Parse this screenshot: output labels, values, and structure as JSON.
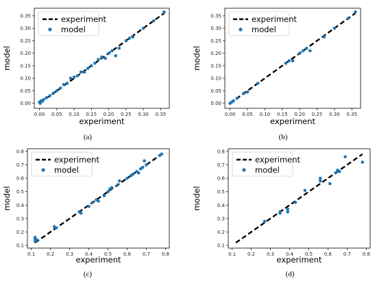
{
  "chart_data": [
    {
      "type": "scatter",
      "panel": "(a)",
      "caption": "(a)",
      "xlabel": "experiment",
      "ylabel": "model",
      "xlim": [
        -0.015,
        0.375
      ],
      "ylim": [
        -0.02,
        0.38
      ],
      "xticks": [
        0.0,
        0.05,
        0.1,
        0.15,
        0.2,
        0.25,
        0.3,
        0.35
      ],
      "yticks": [
        0.0,
        0.05,
        0.1,
        0.15,
        0.2,
        0.25,
        0.3,
        0.35
      ],
      "tick_labels_x": [
        "0.00",
        "0.05",
        "0.10",
        "0.15",
        "0.20",
        "0.25",
        "0.30",
        "0.35"
      ],
      "tick_labels_y": [
        "0.00",
        "0.05",
        "0.10",
        "0.15",
        "0.20",
        "0.25",
        "0.30",
        "0.35"
      ],
      "legend": {
        "position": "top-left",
        "entries": [
          "experiment",
          "model"
        ]
      },
      "series": [
        {
          "name": "experiment",
          "kind": "line",
          "style": "dashed",
          "color": "#000000",
          "x": [
            0.0,
            0.36
          ],
          "y": [
            0.0,
            0.36
          ]
        },
        {
          "name": "model",
          "kind": "scatter",
          "color": "#1f77b4",
          "x": [
            0.0,
            0.002,
            0.005,
            0.008,
            0.012,
            0.02,
            0.03,
            0.04,
            0.05,
            0.06,
            0.07,
            0.08,
            0.09,
            0.1,
            0.11,
            0.12,
            0.13,
            0.14,
            0.15,
            0.16,
            0.17,
            0.18,
            0.19,
            0.2,
            0.21,
            0.22,
            0.23,
            0.25,
            0.26,
            0.27,
            0.3,
            0.33,
            0.36
          ],
          "y": [
            0.005,
            0.0,
            0.01,
            0.008,
            0.015,
            0.022,
            0.03,
            0.04,
            0.05,
            0.06,
            0.075,
            0.08,
            0.1,
            0.105,
            0.11,
            0.125,
            0.125,
            0.14,
            0.15,
            0.16,
            0.175,
            0.185,
            0.18,
            0.2,
            0.21,
            0.19,
            0.22,
            0.25,
            0.26,
            0.265,
            0.3,
            0.33,
            0.365
          ]
        }
      ]
    },
    {
      "type": "scatter",
      "panel": "(b)",
      "caption": "(b)",
      "xlabel": "experiment",
      "ylabel": "model",
      "xlim": [
        -0.015,
        0.375
      ],
      "ylim": [
        -0.02,
        0.38
      ],
      "xticks": [
        0.0,
        0.05,
        0.1,
        0.15,
        0.2,
        0.25,
        0.3,
        0.35
      ],
      "yticks": [
        0.0,
        0.05,
        0.1,
        0.15,
        0.2,
        0.25,
        0.3,
        0.35
      ],
      "tick_labels_x": [
        "0.00",
        "0.05",
        "0.10",
        "0.15",
        "0.20",
        "0.25",
        "0.30",
        "0.35"
      ],
      "tick_labels_y": [
        "0.00",
        "0.05",
        "0.10",
        "0.15",
        "0.20",
        "0.25",
        "0.30",
        "0.35"
      ],
      "legend": {
        "position": "top-left",
        "entries": [
          "experiment",
          "model"
        ]
      },
      "series": [
        {
          "name": "experiment",
          "kind": "line",
          "style": "dashed",
          "color": "#000000",
          "x": [
            0.0,
            0.36
          ],
          "y": [
            0.0,
            0.36
          ]
        },
        {
          "name": "model",
          "kind": "scatter",
          "color": "#1f77b4",
          "x": [
            0.0,
            0.005,
            0.01,
            0.02,
            0.04,
            0.05,
            0.08,
            0.16,
            0.17,
            0.18,
            0.2,
            0.21,
            0.22,
            0.23,
            0.27,
            0.3,
            0.34,
            0.36
          ],
          "y": [
            0.0,
            0.005,
            0.01,
            0.02,
            0.04,
            0.045,
            0.08,
            0.16,
            0.17,
            0.17,
            0.2,
            0.21,
            0.22,
            0.21,
            0.265,
            0.3,
            0.34,
            0.365
          ]
        }
      ]
    },
    {
      "type": "scatter",
      "panel": "(c)",
      "caption": "(c)",
      "xlabel": "experiment",
      "ylabel": "model",
      "xlim": [
        0.08,
        0.82
      ],
      "ylim": [
        0.08,
        0.82
      ],
      "xticks": [
        0.1,
        0.2,
        0.3,
        0.4,
        0.5,
        0.6,
        0.7,
        0.8
      ],
      "yticks": [
        0.1,
        0.2,
        0.3,
        0.4,
        0.5,
        0.6,
        0.7,
        0.8
      ],
      "tick_labels_x": [
        "0.1",
        "0.2",
        "0.3",
        "0.4",
        "0.5",
        "0.6",
        "0.7",
        "0.8"
      ],
      "tick_labels_y": [
        "0.1",
        "0.2",
        "0.3",
        "0.4",
        "0.5",
        "0.6",
        "0.7",
        "0.8"
      ],
      "legend": {
        "position": "top-left",
        "entries": [
          "experiment",
          "model"
        ]
      },
      "series": [
        {
          "name": "experiment",
          "kind": "line",
          "style": "dashed",
          "color": "#000000",
          "x": [
            0.12,
            0.78
          ],
          "y": [
            0.12,
            0.78
          ]
        },
        {
          "name": "model",
          "kind": "scatter",
          "color": "#1f77b4",
          "x": [
            0.12,
            0.12,
            0.12,
            0.13,
            0.22,
            0.23,
            0.35,
            0.36,
            0.4,
            0.42,
            0.44,
            0.45,
            0.48,
            0.5,
            0.51,
            0.52,
            0.55,
            0.56,
            0.6,
            0.62,
            0.63,
            0.65,
            0.66,
            0.67,
            0.68,
            0.69,
            0.7,
            0.77,
            0.78
          ],
          "y": [
            0.13,
            0.15,
            0.16,
            0.14,
            0.24,
            0.23,
            0.35,
            0.34,
            0.39,
            0.42,
            0.44,
            0.43,
            0.47,
            0.5,
            0.52,
            0.53,
            0.55,
            0.58,
            0.6,
            0.62,
            0.63,
            0.65,
            0.64,
            0.67,
            0.68,
            0.73,
            0.7,
            0.77,
            0.78
          ]
        }
      ]
    },
    {
      "type": "scatter",
      "panel": "(d)",
      "caption": "(d)",
      "xlabel": "experiment",
      "ylabel": "model",
      "xlim": [
        0.08,
        0.82
      ],
      "ylim": [
        0.08,
        0.82
      ],
      "xticks": [
        0.1,
        0.2,
        0.3,
        0.4,
        0.5,
        0.6,
        0.7,
        0.8
      ],
      "yticks": [
        0.1,
        0.2,
        0.3,
        0.4,
        0.5,
        0.6,
        0.7,
        0.8
      ],
      "tick_labels_x": [
        "0.1",
        "0.2",
        "0.3",
        "0.4",
        "0.5",
        "0.6",
        "0.7",
        "0.8"
      ],
      "tick_labels_y": [
        "0.1",
        "0.2",
        "0.3",
        "0.4",
        "0.5",
        "0.6",
        "0.7",
        "0.8"
      ],
      "legend": {
        "position": "top-left",
        "entries": [
          "experiment",
          "model"
        ]
      },
      "series": [
        {
          "name": "experiment",
          "kind": "line",
          "style": "dashed",
          "color": "#000000",
          "x": [
            0.12,
            0.78
          ],
          "y": [
            0.12,
            0.78
          ]
        },
        {
          "name": "model",
          "kind": "scatter",
          "color": "#1f77b4",
          "x": [
            0.27,
            0.35,
            0.35,
            0.39,
            0.39,
            0.43,
            0.48,
            0.56,
            0.56,
            0.61,
            0.64,
            0.65,
            0.66,
            0.69,
            0.78
          ],
          "y": [
            0.28,
            0.34,
            0.35,
            0.35,
            0.37,
            0.42,
            0.51,
            0.58,
            0.6,
            0.56,
            0.64,
            0.66,
            0.65,
            0.76,
            0.72
          ]
        }
      ]
    }
  ]
}
